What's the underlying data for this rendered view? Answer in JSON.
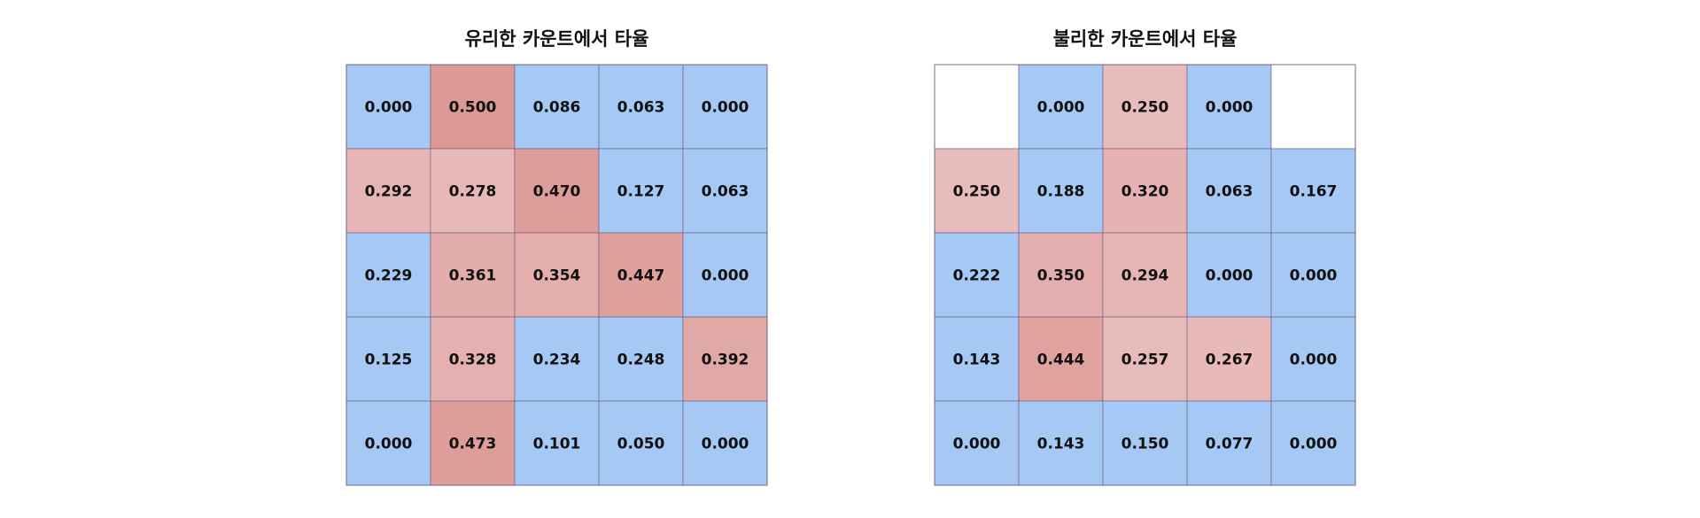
{
  "chart_data": [
    {
      "type": "heatmap",
      "title": "유리한 카운트에서 타율",
      "rows": 5,
      "cols": 5,
      "grid": true,
      "values": [
        [
          0.0,
          0.5,
          0.086,
          0.063,
          0.0
        ],
        [
          0.292,
          0.278,
          0.47,
          0.127,
          0.063
        ],
        [
          0.229,
          0.361,
          0.354,
          0.447,
          0.0
        ],
        [
          0.125,
          0.328,
          0.234,
          0.248,
          0.392
        ],
        [
          0.0,
          0.473,
          0.101,
          0.05,
          0.0
        ]
      ],
      "labels": [
        [
          "0.000",
          "0.500",
          "0.086",
          "0.063",
          "0.000"
        ],
        [
          "0.292",
          "0.278",
          "0.470",
          "0.127",
          "0.063"
        ],
        [
          "0.229",
          "0.361",
          "0.354",
          "0.447",
          "0.000"
        ],
        [
          "0.125",
          "0.328",
          "0.234",
          "0.248",
          "0.392"
        ],
        [
          "0.000",
          "0.473",
          "0.101",
          "0.050",
          "0.000"
        ]
      ]
    },
    {
      "type": "heatmap",
      "title": "불리한 카운트에서 타율",
      "rows": 5,
      "cols": 5,
      "grid": true,
      "values": [
        [
          null,
          0.0,
          0.25,
          0.0,
          null
        ],
        [
          0.25,
          0.188,
          0.32,
          0.063,
          0.167
        ],
        [
          0.222,
          0.35,
          0.294,
          0.0,
          0.0
        ],
        [
          0.143,
          0.444,
          0.257,
          0.267,
          0.0
        ],
        [
          0.0,
          0.143,
          0.15,
          0.077,
          0.0
        ]
      ],
      "labels": [
        [
          "",
          "0.000",
          "0.250",
          "0.000",
          ""
        ],
        [
          "0.250",
          "0.188",
          "0.320",
          "0.063",
          "0.167"
        ],
        [
          "0.222",
          "0.350",
          "0.294",
          "0.000",
          "0.000"
        ],
        [
          "0.143",
          "0.444",
          "0.257",
          "0.267",
          "0.000"
        ],
        [
          "0.000",
          "0.143",
          "0.150",
          "0.077",
          "0.000"
        ]
      ]
    }
  ],
  "colors": {
    "low": "#a6c8f4",
    "high_light": "#e8bcbc",
    "high_dark": "#dc9a96",
    "threshold": 0.25,
    "missing": "#ffffff",
    "grid_line": "#6e5a7a",
    "text": "#111111"
  }
}
